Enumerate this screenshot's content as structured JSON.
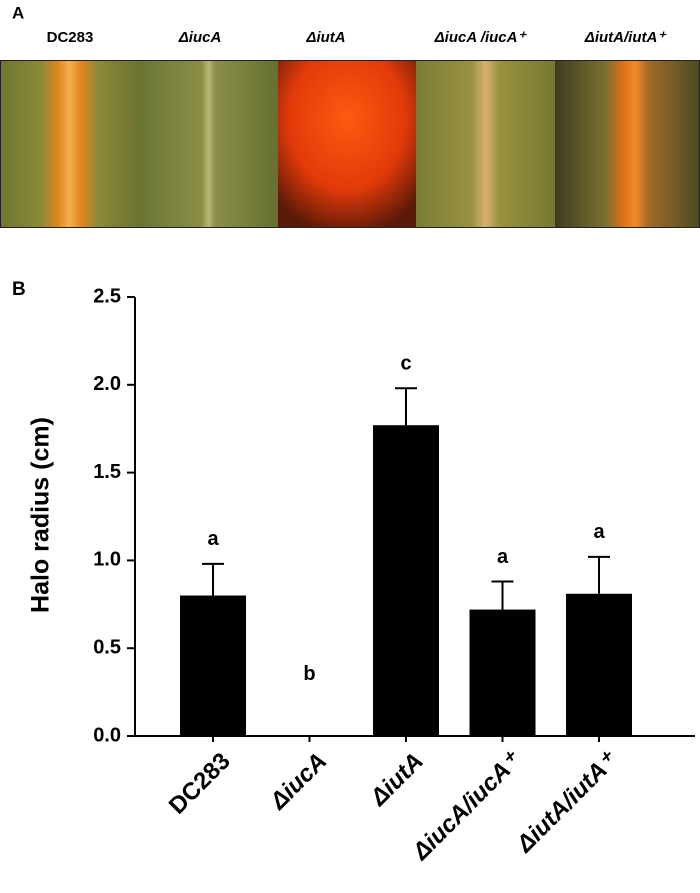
{
  "panel_a": {
    "title": "A",
    "labels": [
      "DC283",
      "ΔiucA",
      "ΔiutA",
      "ΔiucA /iucA⁺",
      "ΔiutA/iutA⁺"
    ]
  },
  "chart_data": {
    "type": "bar",
    "panel_label": "B",
    "ylabel": "Halo radius (cm)",
    "categories": [
      "DC283",
      "ΔiucA",
      "ΔiutA",
      "ΔiucA/iucA⁺",
      "ΔiutA/iutA⁺"
    ],
    "values": [
      0.8,
      0,
      1.77,
      0.72,
      0.81
    ],
    "errors": [
      0.18,
      0,
      0.21,
      0.16,
      0.21
    ],
    "annotations": [
      "a",
      "b",
      "c",
      "a",
      "a"
    ],
    "color": "#000000",
    "ylim": [
      0,
      2.5
    ],
    "yticks": [
      {
        "value": 0,
        "label": "0.0"
      },
      {
        "value": 0.5,
        "label": "0.5"
      },
      {
        "value": 1,
        "label": "1.0"
      },
      {
        "value": 1.5,
        "label": "1.5"
      },
      {
        "value": 2,
        "label": "2.0"
      },
      {
        "value": 2.5,
        "label": "2.5"
      }
    ]
  }
}
